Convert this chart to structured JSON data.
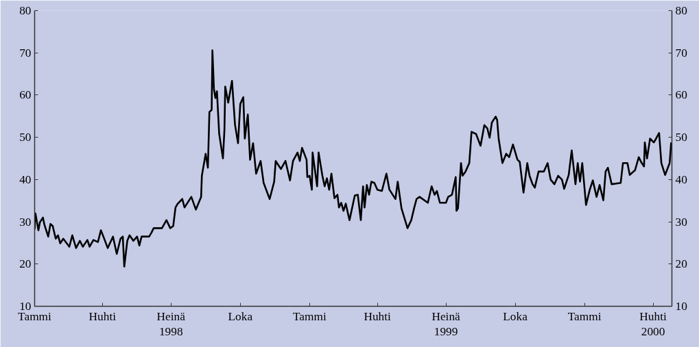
{
  "chart_data": {
    "type": "line",
    "xlim": [
      "1998-01-01",
      "2000-04-26"
    ],
    "xticks": [
      {
        "value": "1998-01-01",
        "label": "Tammi"
      },
      {
        "value": "1998-04-01",
        "label": "Huhti"
      },
      {
        "value": "1998-07-01",
        "label": "Heinä\n1998"
      },
      {
        "value": "1998-10-01",
        "label": "Loka"
      },
      {
        "value": "1999-01-01",
        "label": "Tammi"
      },
      {
        "value": "1999-04-01",
        "label": "Huhti"
      },
      {
        "value": "1999-07-01",
        "label": "Heinä\n1999"
      },
      {
        "value": "1999-10-01",
        "label": "Loka"
      },
      {
        "value": "2000-01-01",
        "label": "Tammi"
      },
      {
        "value": "2000-04-01",
        "label": "Huhti\n2000"
      }
    ],
    "ylim": [
      10,
      80
    ],
    "yticks": [
      10,
      20,
      30,
      40,
      50,
      60,
      70,
      80
    ],
    "y2lim": [
      10,
      80
    ],
    "y2ticks": [
      10,
      20,
      30,
      40,
      50,
      60,
      70,
      80
    ],
    "grid": false,
    "marker": "none",
    "line_style": "solid",
    "series": [
      {
        "color": "#000000",
        "x": [
          "1998-01-01",
          "1998-01-02",
          "1998-01-06",
          "1998-01-08",
          "1998-01-12",
          "1998-01-14",
          "1998-01-19",
          "1998-01-22",
          "1998-01-25",
          "1998-01-29",
          "1998-02-01",
          "1998-02-04",
          "1998-02-08",
          "1998-02-16",
          "1998-02-20",
          "1998-02-25",
          "1998-03-02",
          "1998-03-06",
          "1998-03-12",
          "1998-03-15",
          "1998-03-20",
          "1998-03-26",
          "1998-03-30",
          "1998-04-04",
          "1998-04-08",
          "1998-04-15",
          "1998-04-20",
          "1998-04-25",
          "1998-04-28",
          "1998-04-30",
          "1998-05-04",
          "1998-05-07",
          "1998-05-12",
          "1998-05-17",
          "1998-05-20",
          "1998-05-23",
          "1998-06-02",
          "1998-06-05",
          "1998-06-08",
          "1998-06-19",
          "1998-06-25",
          "1998-06-30",
          "1998-07-04",
          "1998-07-07",
          "1998-07-10",
          "1998-07-16",
          "1998-07-19",
          "1998-07-28",
          "1998-08-03",
          "1998-08-10",
          "1998-08-11",
          "1998-08-16",
          "1998-08-19",
          "1998-08-21",
          "1998-08-24",
          "1998-08-25",
          "1998-08-27",
          "1998-08-29",
          "1998-08-31",
          "1998-09-03",
          "1998-09-08",
          "1998-09-10",
          "1998-09-11",
          "1998-09-15",
          "1998-09-20",
          "1998-09-24",
          "1998-09-28",
          "1998-10-01",
          "1998-10-05",
          "1998-10-07",
          "1998-10-11",
          "1998-10-14",
          "1998-10-18",
          "1998-10-22",
          "1998-10-28",
          "1998-11-01",
          "1998-11-09",
          "1998-11-15",
          "1998-11-17",
          "1998-11-24",
          "1998-11-30",
          "1998-12-06",
          "1998-12-10",
          "1998-12-16",
          "1998-12-19",
          "1998-12-22",
          "1998-12-28",
          "1998-12-29",
          "1999-01-01",
          "1999-01-04",
          "1999-01-05",
          "1999-01-11",
          "1999-01-13",
          "1999-01-18",
          "1999-01-21",
          "1999-01-24",
          "1999-01-27",
          "1999-01-30",
          "1999-02-03",
          "1999-02-07",
          "1999-02-09",
          "1999-02-12",
          "1999-02-15",
          "1999-02-18",
          "1999-02-23",
          "1999-03-02",
          "1999-03-06",
          "1999-03-10",
          "1999-03-13",
          "1999-03-15",
          "1999-03-18",
          "1999-03-21",
          "1999-03-24",
          "1999-03-28",
          "1999-04-01",
          "1999-04-07",
          "1999-04-13",
          "1999-04-17",
          "1999-04-25",
          "1999-04-28",
          "1999-05-03",
          "1999-05-11",
          "1999-05-16",
          "1999-05-20",
          "1999-05-23",
          "1999-05-27",
          "1999-06-07",
          "1999-06-12",
          "1999-06-16",
          "1999-06-19",
          "1999-06-23",
          "1999-07-01",
          "1999-07-04",
          "1999-07-09",
          "1999-07-14",
          "1999-07-15",
          "1999-07-17",
          "1999-07-21",
          "1999-07-23",
          "1999-07-27",
          "1999-08-01",
          "1999-08-04",
          "1999-08-10",
          "1999-08-16",
          "1999-08-21",
          "1999-08-25",
          "1999-08-28",
          "1999-08-31",
          "1999-09-05",
          "1999-09-07",
          "1999-09-09",
          "1999-09-14",
          "1999-09-19",
          "1999-09-23",
          "1999-09-28",
          "1999-10-04",
          "1999-10-07",
          "1999-10-12",
          "1999-10-17",
          "1999-10-20",
          "1999-10-24",
          "1999-10-27",
          "1999-11-01",
          "1999-11-08",
          "1999-11-13",
          "1999-11-17",
          "1999-11-22",
          "1999-11-27",
          "1999-12-02",
          "1999-12-05",
          "1999-12-11",
          "1999-12-15",
          "1999-12-20",
          "1999-12-23",
          "1999-12-26",
          "1999-12-29",
          "2000-01-03",
          "2000-01-08",
          "2000-01-12",
          "2000-01-17",
          "2000-01-21",
          "2000-01-26",
          "2000-01-29",
          "2000-02-01",
          "2000-02-06",
          "2000-02-18",
          "2000-02-21",
          "2000-02-27",
          "2000-03-01",
          "2000-03-08",
          "2000-03-13",
          "2000-03-16",
          "2000-03-20",
          "2000-03-21",
          "2000-03-24",
          "2000-03-28",
          "2000-04-02",
          "2000-04-05",
          "2000-04-09",
          "2000-04-12",
          "2000-04-17",
          "2000-04-23",
          "2000-04-25"
        ],
        "values": [
          28.2,
          32.0,
          28.0,
          29.9,
          31.0,
          29.3,
          26.5,
          29.5,
          29.0,
          26.0,
          26.8,
          24.9,
          26.0,
          24.1,
          26.8,
          23.8,
          25.5,
          24.1,
          25.7,
          24.1,
          25.7,
          25.2,
          28.0,
          25.7,
          23.8,
          26.5,
          22.4,
          26.0,
          26.5,
          19.4,
          25.5,
          26.8,
          25.5,
          26.5,
          24.4,
          26.5,
          26.5,
          27.4,
          28.5,
          28.5,
          30.4,
          28.5,
          29.0,
          33.4,
          34.3,
          35.4,
          33.4,
          35.9,
          32.9,
          35.9,
          40.9,
          46.1,
          42.8,
          56.0,
          56.5,
          70.6,
          61.5,
          59.3,
          60.9,
          50.8,
          45.0,
          51.9,
          62.0,
          58.2,
          63.4,
          53.0,
          48.6,
          57.9,
          59.5,
          49.7,
          55.4,
          44.7,
          48.6,
          41.4,
          44.4,
          39.2,
          35.4,
          39.5,
          44.4,
          42.5,
          44.4,
          39.8,
          44.4,
          46.4,
          44.4,
          47.5,
          44.7,
          40.6,
          40.9,
          37.6,
          46.4,
          38.4,
          46.4,
          40.9,
          38.4,
          40.3,
          37.6,
          41.4,
          35.6,
          36.4,
          33.4,
          34.5,
          32.6,
          34.3,
          30.4,
          36.2,
          36.4,
          30.4,
          38.4,
          33.4,
          38.7,
          36.4,
          39.5,
          39.2,
          37.6,
          37.3,
          41.4,
          37.6,
          35.4,
          39.5,
          33.2,
          28.5,
          30.4,
          33.4,
          35.4,
          35.9,
          34.5,
          38.4,
          36.4,
          37.3,
          34.5,
          34.5,
          35.9,
          36.4,
          40.6,
          32.6,
          33.2,
          43.9,
          40.9,
          41.9,
          43.9,
          51.3,
          50.8,
          48.0,
          52.9,
          52.1,
          49.9,
          53.5,
          54.9,
          54.1,
          49.7,
          43.9,
          46.1,
          45.3,
          48.3,
          44.7,
          44.2,
          36.9,
          43.9,
          40.9,
          38.9,
          38.1,
          41.9,
          41.9,
          43.9,
          40.0,
          38.9,
          40.9,
          40.0,
          37.8,
          41.1,
          46.9,
          38.9,
          43.9,
          39.5,
          43.9,
          34.0,
          37.6,
          39.8,
          35.9,
          38.7,
          35.1,
          41.9,
          42.8,
          38.9,
          39.2,
          43.9,
          43.9,
          41.1,
          42.2,
          45.3,
          44.2,
          43.1,
          48.8,
          45.0,
          49.7,
          48.8,
          49.7,
          51.0,
          43.9,
          41.1,
          43.9,
          48.8
        ]
      }
    ]
  }
}
